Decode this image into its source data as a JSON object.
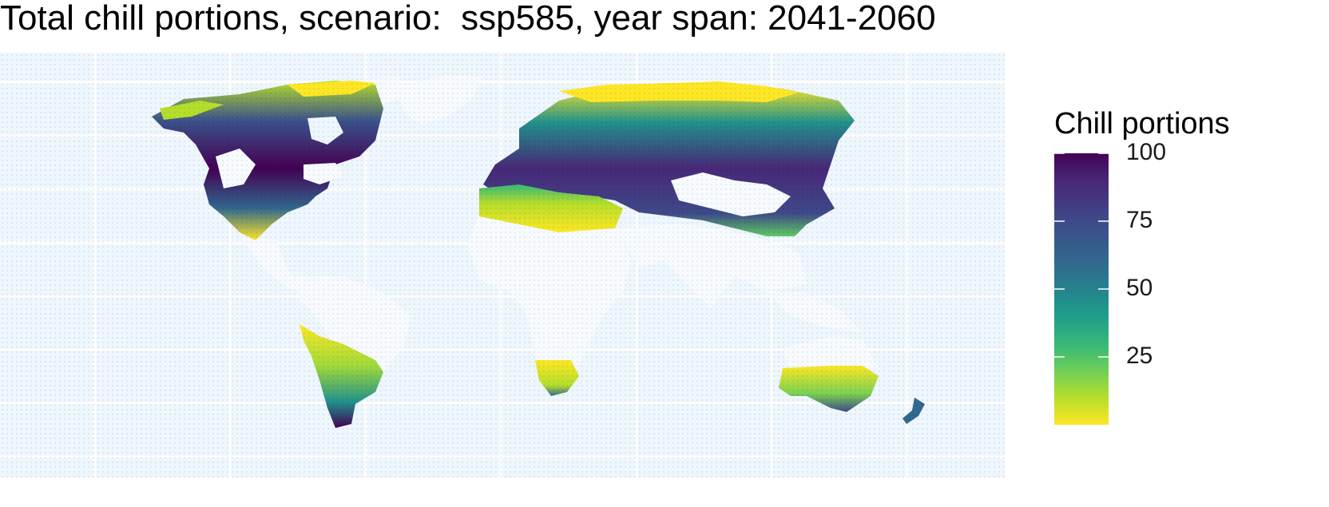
{
  "title": "Total chill portions, scenario:  ssp585, year span: 2041-2060",
  "legend": {
    "title": "Chill portions",
    "breaks": [
      "100",
      "75",
      "50",
      "25"
    ],
    "break_values": [
      100,
      75,
      50,
      25
    ],
    "range": [
      0,
      100
    ],
    "palette": "viridis (reversed: yellow low, dark purple high)",
    "colors": [
      "#440154",
      "#3b528b",
      "#21918c",
      "#5ec962",
      "#fde725"
    ]
  },
  "map": {
    "projection": "equirectangular",
    "ocean_color": "#eef6fe",
    "land_nodata_color": "#f7fbff",
    "gridlines": "white",
    "regions_with_chill": [
      "North America",
      "Europe",
      "Northern Asia",
      "Mediterranean / North Africa",
      "Southern South America",
      "Southern Africa",
      "Southern Australia",
      "New Zealand"
    ]
  }
}
